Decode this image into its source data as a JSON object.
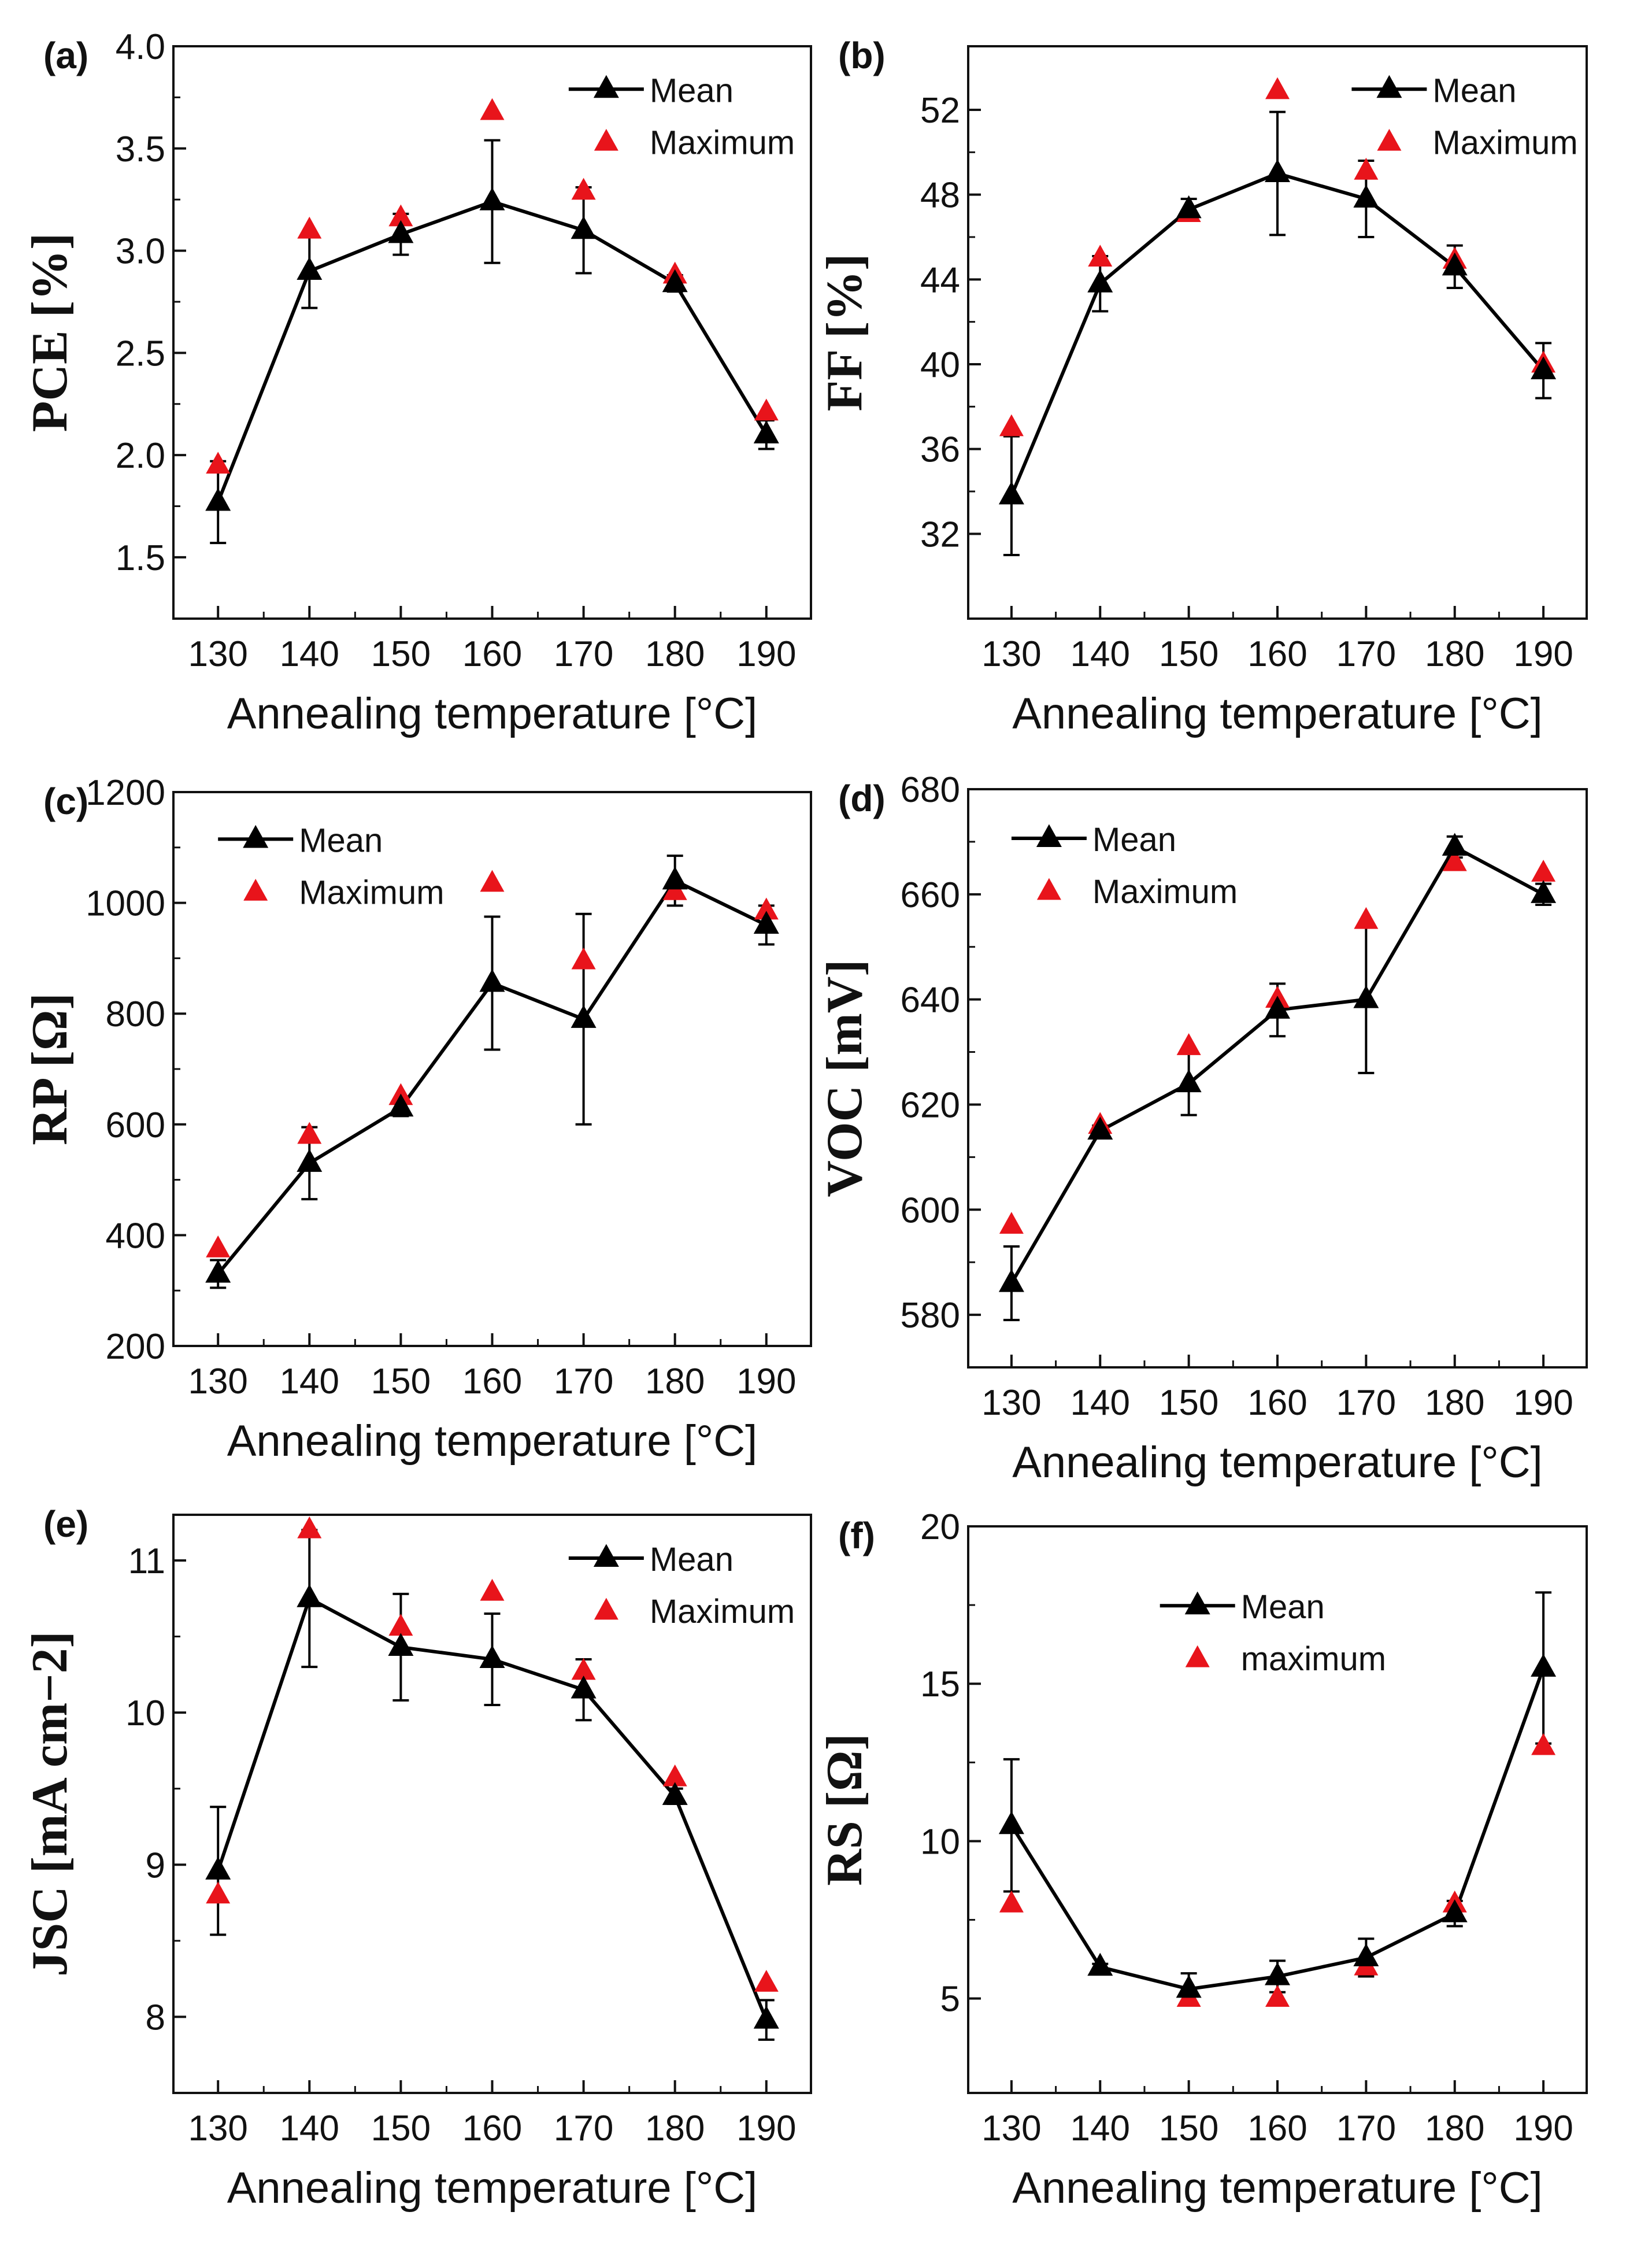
{
  "figure": {
    "x_categories": [
      130,
      140,
      150,
      160,
      170,
      180,
      190
    ],
    "colors": {
      "mean": "#000000",
      "maximum": "#e8141b",
      "axis": "#111111"
    }
  },
  "chart_data": [
    {
      "panel": "(a)",
      "type": "line",
      "xlabel": "Annealing temperature [°C]",
      "ylabel": "PCE [%]",
      "ylim": [
        1.2,
        4.0
      ],
      "yticks": [
        1.5,
        2.0,
        2.5,
        3.0,
        3.5,
        4.0
      ],
      "ytick_labels": [
        "1.5",
        "2.0",
        "2.5",
        "3.0",
        "3.5",
        "4.0"
      ],
      "x": [
        130,
        140,
        150,
        160,
        170,
        180,
        190
      ],
      "xticks": [
        130,
        140,
        150,
        160,
        170,
        180,
        190
      ],
      "series": [
        {
          "name": "Mean",
          "values": [
            1.77,
            2.9,
            3.08,
            3.24,
            3.1,
            2.84,
            2.1
          ],
          "errors": [
            0.2,
            0.18,
            0.1,
            0.3,
            0.21,
            0.04,
            0.07
          ]
        },
        {
          "name": "Maximum",
          "values": [
            1.95,
            3.1,
            3.16,
            3.68,
            3.29,
            2.88,
            2.21
          ]
        }
      ],
      "legend": {
        "mean": "Mean",
        "maximum": "Maximum",
        "position": "top-right"
      }
    },
    {
      "panel": "(b)",
      "type": "line",
      "xlabel": "Annealing temperature [°C]",
      "ylabel": "FF [%]",
      "ylim": [
        28,
        55
      ],
      "yticks": [
        32,
        36,
        40,
        44,
        48,
        52
      ],
      "ytick_labels": [
        "32",
        "36",
        "40",
        "44",
        "48",
        "52"
      ],
      "x": [
        130,
        140,
        150,
        160,
        170,
        180,
        190
      ],
      "xticks": [
        130,
        140,
        150,
        160,
        170,
        180,
        190
      ],
      "series": [
        {
          "name": "Mean",
          "values": [
            33.8,
            43.8,
            47.3,
            49.0,
            47.8,
            44.6,
            39.7
          ],
          "errors": [
            2.8,
            1.3,
            0.5,
            2.9,
            1.8,
            1.0,
            1.3
          ]
        },
        {
          "name": "Maximum",
          "values": [
            37.0,
            45.0,
            47.1,
            52.9,
            49.1,
            44.9,
            40.0
          ]
        }
      ],
      "legend": {
        "mean": "Mean",
        "maximum": "Maximum",
        "position": "top-right"
      }
    },
    {
      "panel": "(c)",
      "type": "line",
      "xlabel": "Annealing temperature [°C]",
      "ylabel": "RP [Ω]",
      "ylim": [
        200,
        1200
      ],
      "yticks": [
        200,
        400,
        600,
        800,
        1000,
        1200
      ],
      "ytick_labels": [
        "200",
        "400",
        "600",
        "800",
        "1000",
        "1200"
      ],
      "x": [
        130,
        140,
        150,
        160,
        170,
        180,
        190
      ],
      "xticks": [
        130,
        140,
        150,
        160,
        170,
        180,
        190
      ],
      "series": [
        {
          "name": "Mean",
          "values": [
            330,
            530,
            630,
            855,
            790,
            1040,
            960
          ],
          "errors": [
            25,
            65,
            15,
            120,
            190,
            45,
            35
          ]
        },
        {
          "name": "Maximum",
          "values": [
            375,
            580,
            650,
            1035,
            895,
            1020,
            985
          ]
        }
      ],
      "legend": {
        "mean": "Mean",
        "maximum": "Maximum",
        "position": "top-left"
      }
    },
    {
      "panel": "(d)",
      "type": "line",
      "xlabel": "Annealing temperature [°C]",
      "ylabel": "VOC [mV]",
      "ylim": [
        570,
        680
      ],
      "yticks": [
        580,
        600,
        620,
        640,
        660,
        680
      ],
      "ytick_labels": [
        "580",
        "600",
        "620",
        "640",
        "660",
        "680"
      ],
      "x": [
        130,
        140,
        150,
        160,
        170,
        180,
        190
      ],
      "xticks": [
        130,
        140,
        150,
        160,
        170,
        180,
        190
      ],
      "series": [
        {
          "name": "Mean",
          "values": [
            586,
            615,
            624,
            638,
            640,
            669,
            660
          ],
          "errors": [
            7,
            1,
            6,
            5,
            14,
            2,
            2
          ]
        },
        {
          "name": "Maximum",
          "values": [
            597,
            616,
            631,
            640,
            655,
            666,
            664
          ]
        }
      ],
      "legend": {
        "mean": "Mean",
        "maximum": "Maximum",
        "position": "top-left"
      }
    },
    {
      "panel": "(e)",
      "type": "line",
      "xlabel": "Annealing temperature [°C]",
      "ylabel": "JSC [mA cm−2]",
      "ylim": [
        7.5,
        11.3
      ],
      "yticks": [
        8,
        9,
        10,
        11
      ],
      "ytick_labels": [
        "8",
        "9",
        "10",
        "11"
      ],
      "x": [
        130,
        140,
        150,
        160,
        170,
        180,
        190
      ],
      "xticks": [
        130,
        140,
        150,
        160,
        170,
        180,
        190
      ],
      "series": [
        {
          "name": "Mean",
          "values": [
            8.96,
            10.75,
            10.43,
            10.35,
            10.15,
            9.45,
            7.98
          ],
          "errors": [
            0.42,
            0.45,
            0.35,
            0.3,
            0.2,
            0.05,
            0.13
          ]
        },
        {
          "name": "Maximum",
          "values": [
            8.8,
            11.2,
            10.56,
            10.79,
            10.27,
            9.57,
            8.22
          ]
        }
      ],
      "legend": {
        "mean": "Mean",
        "maximum": "Maximum",
        "position": "top-right"
      }
    },
    {
      "panel": "(f)",
      "type": "line",
      "xlabel": "Annealing temperature [°C]",
      "ylabel": "RS [Ω]",
      "ylim": [
        2,
        20
      ],
      "yticks": [
        5,
        10,
        15,
        20
      ],
      "ytick_labels": [
        "5",
        "10",
        "15",
        "20"
      ],
      "x": [
        130,
        140,
        150,
        160,
        170,
        180,
        190
      ],
      "xticks": [
        130,
        140,
        150,
        160,
        170,
        180,
        190
      ],
      "series": [
        {
          "name": "Mean",
          "values": [
            10.5,
            6.0,
            5.3,
            5.7,
            6.3,
            7.7,
            15.5
          ],
          "errors": [
            2.1,
            0.1,
            0.5,
            0.5,
            0.6,
            0.4,
            2.4
          ]
        },
        {
          "name": "Maximum",
          "values": [
            8.0,
            6.0,
            5.0,
            5.0,
            6.0,
            8.0,
            13.0
          ]
        }
      ],
      "legend": {
        "mean": "Mean",
        "maximum": "maximum",
        "position": "top-center"
      }
    }
  ]
}
